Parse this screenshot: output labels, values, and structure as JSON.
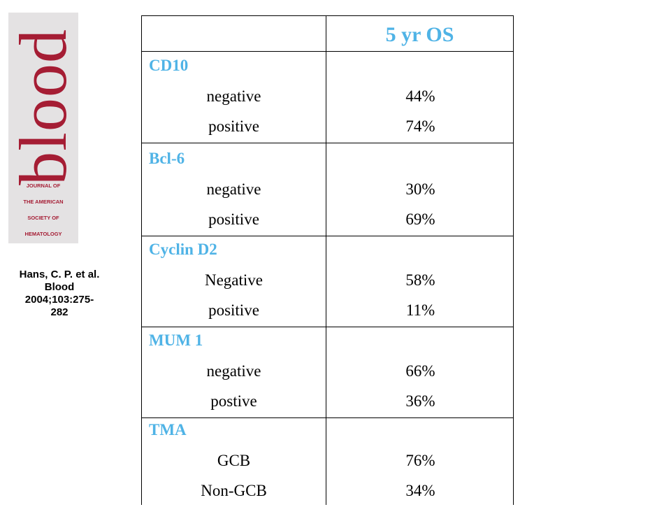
{
  "logo": {
    "word": "blood",
    "lines": [
      "JOURNAL OF",
      "THE AMERICAN",
      "SOCIETY OF",
      "HEMATOLOGY"
    ],
    "color": "#a51d34"
  },
  "citation": [
    "Hans, C. P. et al.",
    "Blood",
    "2004;103:275-",
    "282"
  ],
  "table": {
    "header": "5 yr OS",
    "groups": [
      {
        "title": "CD10",
        "rows": [
          {
            "label": "negative",
            "value": "44%"
          },
          {
            "label": "positive",
            "value": "74%"
          }
        ]
      },
      {
        "title": "Bcl-6",
        "rows": [
          {
            "label": "negative",
            "value": "30%"
          },
          {
            "label": "positive",
            "value": "69%"
          }
        ]
      },
      {
        "title": "Cyclin D2",
        "rows": [
          {
            "label": "Negative",
            "value": "58%"
          },
          {
            "label": "positive",
            "value": "11%"
          }
        ]
      },
      {
        "title": "MUM 1",
        "rows": [
          {
            "label": "negative",
            "value": "66%"
          },
          {
            "label": "postive",
            "value": "36%"
          }
        ]
      },
      {
        "title": "TMA",
        "rows": [
          {
            "label": "GCB",
            "value": "76%"
          },
          {
            "label": "Non-GCB",
            "value": "34%"
          }
        ]
      }
    ]
  },
  "colors": {
    "accent": "#4fb3e6",
    "logo_bg": "#e4e2e3"
  }
}
